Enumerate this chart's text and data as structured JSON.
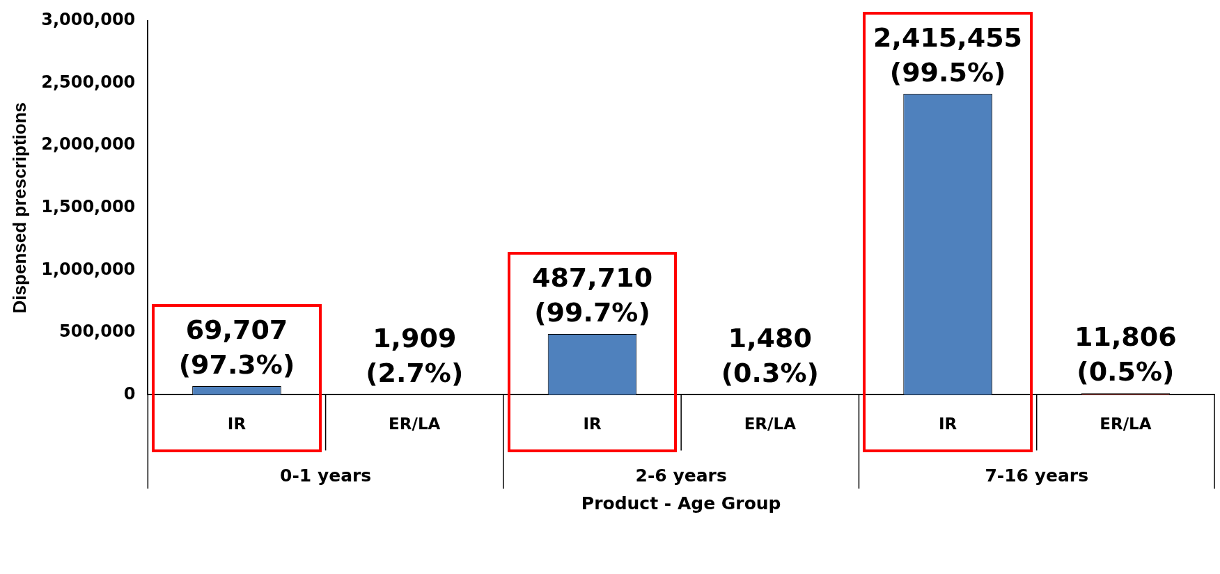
{
  "chart_data": {
    "type": "bar",
    "xlabel": "Product - Age Group",
    "ylabel": "Dispensed prescriptions",
    "categories": [
      "IR",
      "ER/LA",
      "IR",
      "ER/LA",
      "IR",
      "ER/LA"
    ],
    "values": [
      69707,
      1909,
      487710,
      1480,
      2415455,
      11806
    ],
    "colors": [
      "#4f81bd",
      "#4f81bd",
      "#4f81bd",
      "#4f81bd",
      "#4f81bd",
      "#c0504d"
    ],
    "value_labels": [
      "69,707\n(97.3%)",
      "1,909\n(2.7%)",
      "487,710\n(99.7%)",
      "1,480\n(0.3%)",
      "2,415,455\n(99.5%)",
      "11,806\n(0.5%)"
    ],
    "annotations": [
      "0-1 years",
      "2-6 years",
      "7-16 years"
    ],
    "ylim": [
      0,
      3000000
    ],
    "yticks": [
      0,
      {
        "value": 500000,
        "label": "500,000"
      },
      {
        "value": 1000000,
        "label": "1,000,000"
      },
      {
        "value": 1500000,
        "label": "1,500,000"
      },
      {
        "value": 2000000,
        "label": "2,000,000"
      },
      {
        "value": 2500000,
        "label": "2,500,000"
      },
      {
        "value": 3000000,
        "label": "3,000,000"
      }
    ],
    "grid": false,
    "legend": false
  }
}
